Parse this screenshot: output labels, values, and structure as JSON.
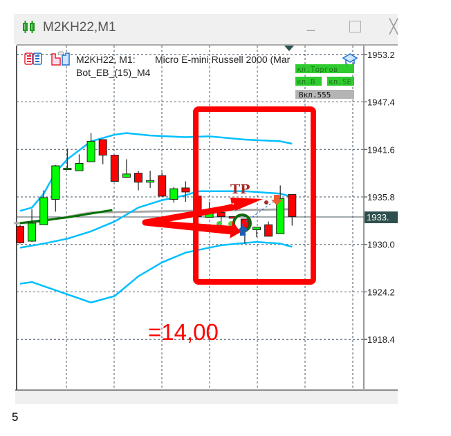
{
  "window": {
    "title": "M2KH22,M1",
    "icon": "candlestick-chart-icon",
    "minimize_label": "_",
    "maximize_icon": "maximize-icon",
    "close_icon": "close-icon"
  },
  "chart": {
    "legend_symbol": "M2KH22, M1:",
    "legend_description": "Micro E-mini Russell 2000 (Mar",
    "legend_bot": "Bot_EB_(15)_M4",
    "current_price_label": "1933.",
    "annotation_tp": "TP",
    "annotation_result": "=14,00",
    "buttons": [
      {
        "label": "кл.Торгов",
        "color": "#2ecc2e"
      },
      {
        "label": "кл.B",
        "color": "#2ecc2e"
      },
      {
        "label": "кл.SE",
        "color": "#2ecc2e"
      },
      {
        "label": "Вкл.555",
        "color": "#b4b4b4"
      }
    ]
  },
  "footer": {
    "text": "5"
  },
  "chart_data": {
    "type": "candlestick",
    "timeframe": "M1",
    "y_ticks": [
      "1953.2",
      "1947.4",
      "1941.6",
      "1935.8",
      "1930.0",
      "1924.2",
      "1918.4"
    ],
    "ylim": [
      1913.5,
      1954.5
    ],
    "grid": true,
    "current_price": 1933.35,
    "colors": {
      "bull": "#00ff00",
      "bear": "#ff0000",
      "bands": "#00bfff",
      "ma": "#007000",
      "annotation": "#ff0000"
    },
    "candles": [
      [
        1932.2,
        1932.4,
        1930.1,
        1930.2
      ],
      [
        1930.4,
        1934.3,
        1930.3,
        1932.6
      ],
      [
        1932.4,
        1936.6,
        1932.4,
        1935.7
      ],
      [
        1935.5,
        1939.7,
        1934.0,
        1939.6
      ],
      [
        1939.3,
        1941.7,
        1939.2,
        1939.3
      ],
      [
        1939.0,
        1941.0,
        1939.0,
        1939.9
      ],
      [
        1940.1,
        1943.6,
        1940.1,
        1942.6
      ],
      [
        1942.8,
        1942.8,
        1939.8,
        1940.9
      ],
      [
        1940.9,
        1940.9,
        1937.7,
        1937.7
      ],
      [
        1938.2,
        1940.4,
        1938.2,
        1938.6
      ],
      [
        1938.7,
        1939.0,
        1936.6,
        1937.6
      ],
      [
        1937.6,
        1939.0,
        1936.9,
        1937.8
      ],
      [
        1938.4,
        1938.8,
        1935.8,
        1935.9
      ],
      [
        1935.5,
        1937.0,
        1935.1,
        1936.8
      ],
      [
        1936.9,
        1937.7,
        1935.2,
        1936.4
      ],
      [
        1935.9,
        1936.1,
        1933.3,
        1933.4
      ],
      [
        1933.3,
        1935.2,
        1933.3,
        1933.9
      ],
      [
        1933.9,
        1933.9,
        1932.6,
        1933.4
      ],
      [
        1933.4,
        1933.4,
        1933.2,
        1933.2
      ],
      [
        1933.1,
        1933.1,
        1930.1,
        1932.0
      ],
      [
        1931.8,
        1932.1,
        1930.9,
        1932.1
      ],
      [
        1932.4,
        1932.8,
        1931.0,
        1931.0
      ],
      [
        1931.3,
        1937.2,
        1931.3,
        1935.6
      ],
      [
        1936.1,
        1936.1,
        1932.3,
        1933.4
      ]
    ],
    "bands_upper": [
      [
        0,
        1934.1
      ],
      [
        1,
        1934.5
      ],
      [
        2,
        1936.2
      ],
      [
        3,
        1938.8
      ],
      [
        4,
        1940.4
      ],
      [
        6,
        1942.6
      ],
      [
        7,
        1943.0
      ],
      [
        8,
        1943.4
      ],
      [
        9,
        1943.6
      ],
      [
        11,
        1943.3
      ],
      [
        14,
        1943.1
      ],
      [
        16,
        1943.2
      ],
      [
        19,
        1942.8
      ],
      [
        22,
        1942.6
      ],
      [
        23,
        1942.3
      ]
    ],
    "bands_middle": [
      [
        0,
        1929.6
      ],
      [
        2,
        1930.1
      ],
      [
        4,
        1930.7
      ],
      [
        6,
        1931.6
      ],
      [
        8,
        1932.8
      ],
      [
        10,
        1934.5
      ],
      [
        12,
        1935.4
      ],
      [
        14,
        1936.0
      ],
      [
        15,
        1936.5
      ],
      [
        19,
        1936.5
      ],
      [
        22,
        1936.2
      ],
      [
        23,
        1935.8
      ]
    ],
    "bands_lower": [
      [
        0,
        1925.2
      ],
      [
        1,
        1925.4
      ],
      [
        3,
        1924.4
      ],
      [
        6,
        1922.9
      ],
      [
        8,
        1923.7
      ],
      [
        10,
        1926.1
      ],
      [
        12,
        1927.8
      ],
      [
        14,
        1929.0
      ],
      [
        17,
        1929.9
      ],
      [
        20,
        1930.3
      ],
      [
        22,
        1930.1
      ],
      [
        23,
        1929.7
      ]
    ],
    "ma_green": [
      [
        0,
        1932.6
      ],
      [
        4,
        1933.3
      ],
      [
        7.8,
        1934.2
      ]
    ],
    "ma_gray": [
      [
        -0.5,
        1932.6
      ],
      [
        1,
        1932.6
      ],
      [
        6,
        1933.9
      ],
      [
        23,
        1934.3
      ]
    ]
  }
}
